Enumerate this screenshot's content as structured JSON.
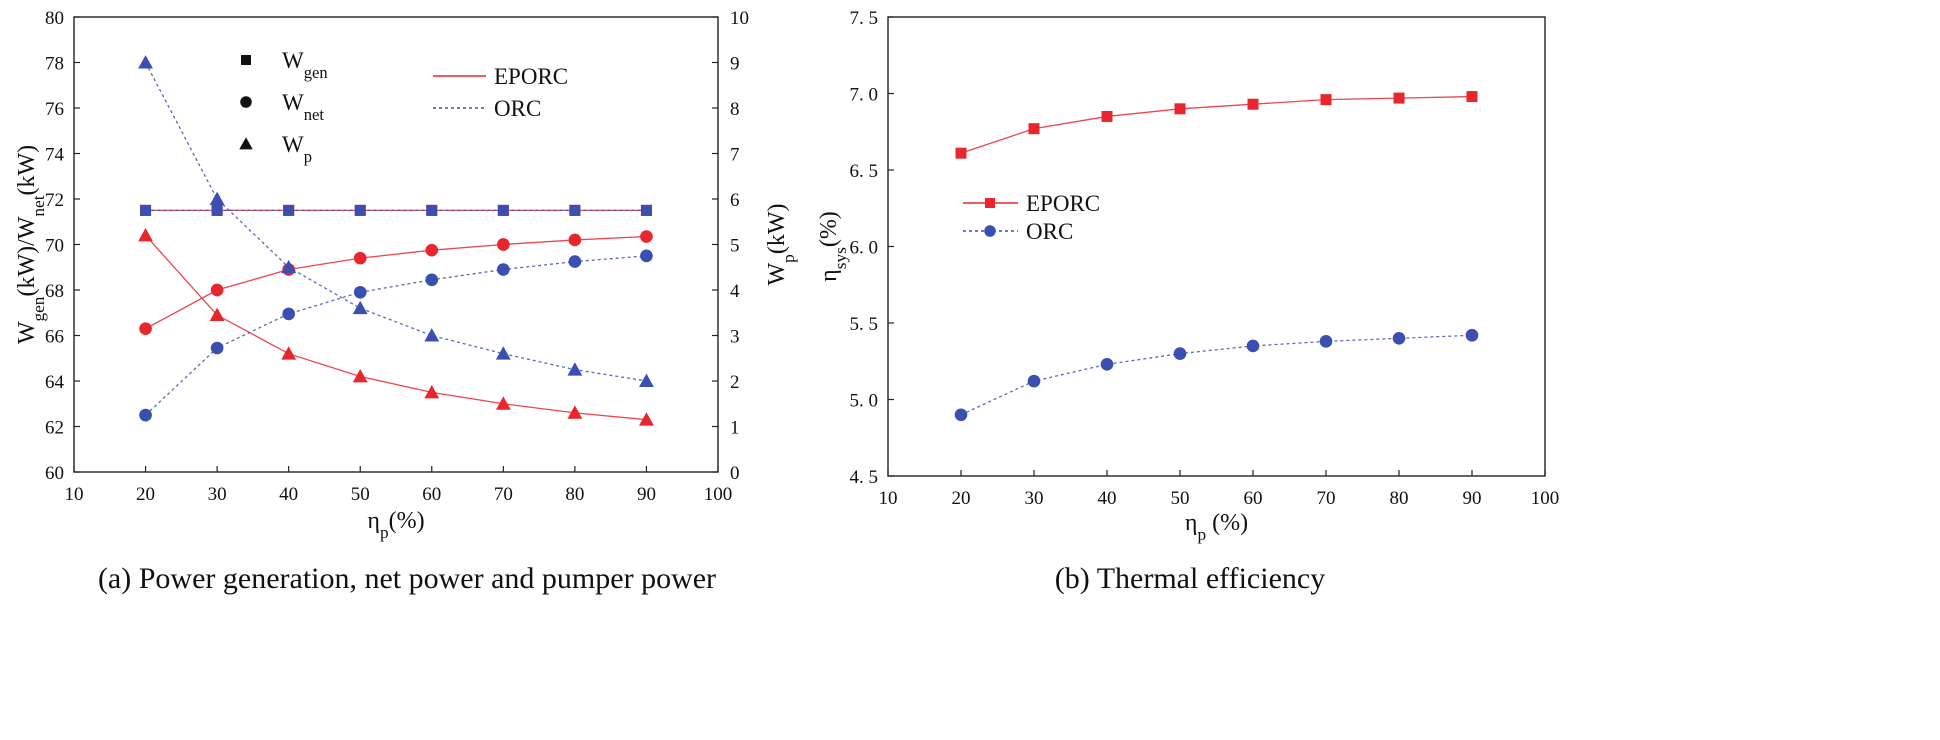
{
  "colors": {
    "eporc": "#e8262e",
    "orc": "#3b4fb0",
    "eporc_light": "#f08b8b",
    "orc_light": "#7f8fd6",
    "legend_black": "#111111"
  },
  "chart_data": [
    {
      "id": "a",
      "type": "line",
      "caption": "(a) Power generation, net power and pumper power",
      "x": [
        20,
        30,
        40,
        50,
        60,
        70,
        80,
        90
      ],
      "xlim": [
        10,
        100
      ],
      "xticks": [
        "10",
        "20",
        "30",
        "40",
        "50",
        "60",
        "70",
        "80",
        "90",
        "100"
      ],
      "xlabel": {
        "main": "η",
        "sub": "p",
        "tail": "(%)"
      },
      "ylim_left": [
        60,
        80
      ],
      "yticks_left": [
        "60",
        "62",
        "64",
        "66",
        "68",
        "70",
        "72",
        "74",
        "76",
        "78",
        "80"
      ],
      "ylabel_left": {
        "p1": "W",
        "s1": "gen",
        "p2": "(kW)/W",
        "s2": "net",
        "p3": "(kW)"
      },
      "ylim_right": [
        0,
        10
      ],
      "yticks_right": [
        "0",
        "1",
        "2",
        "3",
        "4",
        "5",
        "6",
        "7",
        "8",
        "9",
        "10"
      ],
      "ylabel_right": {
        "main": "W",
        "sub": "p",
        "tail": "(kW)"
      },
      "marker_legend": [
        {
          "marker": "square",
          "main": "W",
          "sub": "gen"
        },
        {
          "marker": "circle",
          "main": "W",
          "sub": "net"
        },
        {
          "marker": "triangle",
          "main": "W",
          "sub": "p"
        }
      ],
      "line_legend": [
        {
          "name": "EPORC",
          "dashed": false,
          "color_key": "eporc"
        },
        {
          "name": "ORC",
          "dashed": true,
          "color_key": "orc"
        }
      ],
      "series": [
        {
          "name": "W_gen EPORC",
          "axis": "left",
          "marker": "square",
          "color_key": "eporc",
          "dashed": false,
          "values": [
            71.5,
            71.5,
            71.5,
            71.5,
            71.5,
            71.5,
            71.5,
            71.5
          ]
        },
        {
          "name": "W_gen ORC",
          "axis": "left",
          "marker": "square",
          "color_key": "orc",
          "dashed": true,
          "values": [
            71.5,
            71.5,
            71.5,
            71.5,
            71.5,
            71.5,
            71.5,
            71.5
          ]
        },
        {
          "name": "W_net EPORC",
          "axis": "left",
          "marker": "circle",
          "color_key": "eporc",
          "dashed": false,
          "values": [
            66.3,
            68.0,
            68.9,
            69.4,
            69.75,
            70.0,
            70.2,
            70.35
          ]
        },
        {
          "name": "W_net ORC",
          "axis": "left",
          "marker": "circle",
          "color_key": "orc",
          "dashed": true,
          "values": [
            62.5,
            65.45,
            66.95,
            67.9,
            68.45,
            68.9,
            69.25,
            69.5
          ]
        },
        {
          "name": "W_p EPORC",
          "axis": "right",
          "marker": "triangle",
          "color_key": "eporc",
          "dashed": false,
          "values": [
            5.2,
            3.45,
            2.6,
            2.1,
            1.75,
            1.5,
            1.3,
            1.15
          ]
        },
        {
          "name": "W_p ORC",
          "axis": "right",
          "marker": "triangle",
          "color_key": "orc",
          "dashed": true,
          "values": [
            9.0,
            6.0,
            4.5,
            3.6,
            3.0,
            2.6,
            2.25,
            2.0
          ]
        }
      ]
    },
    {
      "id": "b",
      "type": "line",
      "caption": "(b) Thermal efficiency",
      "x": [
        20,
        30,
        40,
        50,
        60,
        70,
        80,
        90
      ],
      "xlim": [
        10,
        100
      ],
      "xticks": [
        "10",
        "20",
        "30",
        "40",
        "50",
        "60",
        "70",
        "80",
        "90",
        "100"
      ],
      "xlabel": {
        "main": "η",
        "sub": "p",
        "tail": " (%)"
      },
      "ylim_left": [
        4.5,
        7.5
      ],
      "yticks_left": [
        "4. 5",
        "5. 0",
        "5. 5",
        "6. 0",
        "6. 5",
        "7. 0",
        "7. 5"
      ],
      "ylabel_left": {
        "main": "η",
        "sub": "sys",
        "tail": "(%)"
      },
      "line_legend": [
        {
          "name": "EPORC",
          "dashed": false,
          "color_key": "eporc",
          "marker": "square"
        },
        {
          "name": "ORC",
          "dashed": true,
          "color_key": "orc",
          "marker": "circle"
        }
      ],
      "series": [
        {
          "name": "EPORC",
          "axis": "left",
          "marker": "square",
          "color_key": "eporc",
          "dashed": false,
          "values": [
            6.61,
            6.77,
            6.85,
            6.9,
            6.93,
            6.96,
            6.97,
            6.98
          ]
        },
        {
          "name": "ORC",
          "axis": "left",
          "marker": "circle",
          "color_key": "orc",
          "dashed": true,
          "values": [
            4.9,
            5.12,
            5.23,
            5.3,
            5.35,
            5.38,
            5.4,
            5.42
          ]
        }
      ]
    }
  ]
}
